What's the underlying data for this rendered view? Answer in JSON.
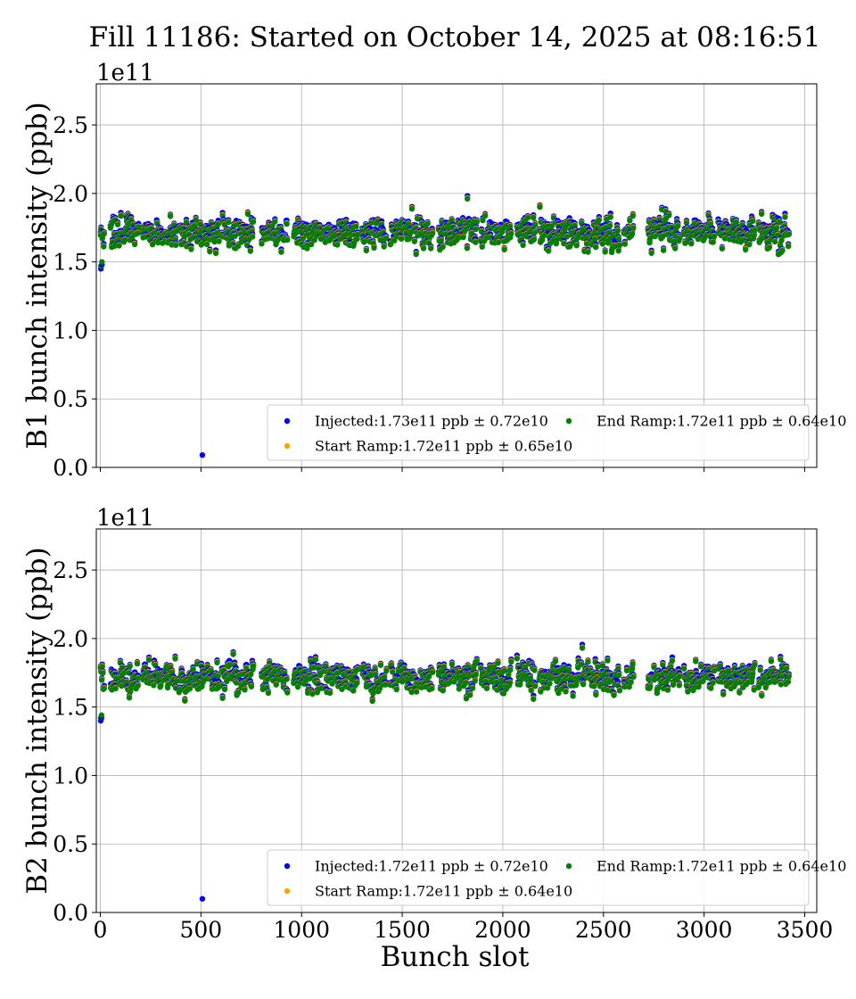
{
  "title": "Fill 11186: Started on October 14, 2025 at 08:16:51",
  "chart_data": [
    {
      "type": "scatter",
      "ylabel": "B1 bunch intensity (ppb)",
      "xlabel": "",
      "offset_text": "1e11",
      "xlim": [
        -20,
        3560
      ],
      "ylim": [
        0.0,
        2.8
      ],
      "xticks": [
        0,
        500,
        1000,
        1500,
        2000,
        2500,
        3000,
        3500
      ],
      "yticks": [
        0.0,
        0.5,
        1.0,
        1.5,
        2.0,
        2.5
      ],
      "ytick_labels": [
        "0.0",
        "0.5",
        "1.0",
        "1.5",
        "2.0",
        "2.5"
      ],
      "xtick_labels_visible": false,
      "grid": true,
      "legend_loc": "lower-right",
      "series": [
        {
          "name": "Injected:1.73e11 ppb ± 0.72e10",
          "color": "#0000ff",
          "mean": 1.73,
          "std": 0.072,
          "outliers": [
            [
              507,
              0.09
            ],
            [
              3,
              1.45
            ],
            [
              8,
              1.48
            ]
          ]
        },
        {
          "name": "Start Ramp:1.72e11 ppb ± 0.65e10",
          "color": "#ffa500",
          "mean": 1.72,
          "std": 0.065,
          "outliers": []
        },
        {
          "name": "End Ramp:1.72e11 ppb ± 0.64e10",
          "color": "#008000",
          "mean": 1.72,
          "std": 0.064,
          "outliers": []
        }
      ],
      "trains": [
        [
          0,
          20
        ],
        [
          50,
          190
        ],
        [
          210,
          380
        ],
        [
          390,
          590
        ],
        [
          600,
          760
        ],
        [
          800,
          930
        ],
        [
          960,
          1100
        ],
        [
          1110,
          1280
        ],
        [
          1300,
          1420
        ],
        [
          1440,
          1650
        ],
        [
          1680,
          1870
        ],
        [
          1890,
          2040
        ],
        [
          2070,
          2160
        ],
        [
          2180,
          2380
        ],
        [
          2390,
          2580
        ],
        [
          2600,
          2650
        ],
        [
          2720,
          2880
        ],
        [
          2900,
          3050
        ],
        [
          3070,
          3250
        ],
        [
          3270,
          3420
        ]
      ],
      "seed": 11
    },
    {
      "type": "scatter",
      "ylabel": "B2 bunch intensity (ppb)",
      "xlabel": "Bunch slot",
      "offset_text": "1e11",
      "xlim": [
        -20,
        3560
      ],
      "ylim": [
        0.0,
        2.8
      ],
      "xticks": [
        0,
        500,
        1000,
        1500,
        2000,
        2500,
        3000,
        3500
      ],
      "xtick_labels": [
        "0",
        "500",
        "1000",
        "1500",
        "2000",
        "2500",
        "3000",
        "3500"
      ],
      "yticks": [
        0.0,
        0.5,
        1.0,
        1.5,
        2.0,
        2.5
      ],
      "ytick_labels": [
        "0.0",
        "0.5",
        "1.0",
        "1.5",
        "2.0",
        "2.5"
      ],
      "xtick_labels_visible": true,
      "grid": true,
      "legend_loc": "lower-right",
      "series": [
        {
          "name": "Injected:1.72e11 ppb ± 0.72e10",
          "color": "#0000ff",
          "mean": 1.72,
          "std": 0.072,
          "outliers": [
            [
              507,
              0.1
            ],
            [
              2,
              1.4
            ],
            [
              6,
              1.42
            ]
          ]
        },
        {
          "name": "Start Ramp:1.72e11 ppb ± 0.64e10",
          "color": "#ffa500",
          "mean": 1.72,
          "std": 0.064,
          "outliers": []
        },
        {
          "name": "End Ramp:1.72e11 ppb ± 0.64e10",
          "color": "#008000",
          "mean": 1.72,
          "std": 0.064,
          "outliers": []
        }
      ],
      "trains": [
        [
          0,
          20
        ],
        [
          50,
          190
        ],
        [
          210,
          380
        ],
        [
          390,
          590
        ],
        [
          600,
          760
        ],
        [
          800,
          930
        ],
        [
          960,
          1100
        ],
        [
          1110,
          1280
        ],
        [
          1300,
          1420
        ],
        [
          1440,
          1650
        ],
        [
          1680,
          1870
        ],
        [
          1890,
          2040
        ],
        [
          2070,
          2160
        ],
        [
          2180,
          2380
        ],
        [
          2390,
          2580
        ],
        [
          2600,
          2650
        ],
        [
          2720,
          2880
        ],
        [
          2900,
          3050
        ],
        [
          3070,
          3250
        ],
        [
          3270,
          3420
        ]
      ],
      "seed": 29
    }
  ]
}
